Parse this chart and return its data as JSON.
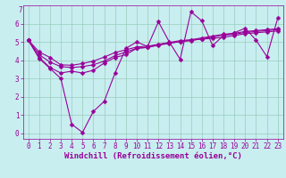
{
  "background_color": "#c8eef0",
  "grid_color": "#99ccbb",
  "line_color": "#990099",
  "marker": "D",
  "markersize": 2.5,
  "linewidth": 0.8,
  "xlabel": "Windchill (Refroidissement éolien,°C)",
  "xlabel_fontsize": 6.5,
  "tick_fontsize": 5.5,
  "xlim": [
    -0.5,
    23.5
  ],
  "ylim": [
    -0.3,
    7.0
  ],
  "yticks": [
    0,
    1,
    2,
    3,
    4,
    5,
    6
  ],
  "xticks": [
    0,
    1,
    2,
    3,
    4,
    5,
    6,
    7,
    8,
    9,
    10,
    11,
    12,
    13,
    14,
    15,
    16,
    17,
    18,
    19,
    20,
    21,
    22,
    23
  ],
  "series": [
    [
      5.1,
      4.1,
      3.55,
      3.0,
      0.5,
      0.05,
      1.2,
      1.75,
      3.3,
      4.65,
      5.0,
      4.75,
      6.1,
      5.0,
      4.05,
      6.65,
      6.15,
      4.8,
      5.35,
      5.5,
      5.75,
      5.1,
      4.2,
      6.3
    ],
    [
      5.1,
      4.15,
      3.6,
      3.3,
      3.4,
      3.3,
      3.45,
      3.85,
      4.15,
      4.3,
      4.65,
      4.7,
      4.85,
      4.95,
      5.0,
      5.1,
      5.15,
      5.2,
      5.25,
      5.35,
      5.45,
      5.5,
      5.55,
      5.6
    ],
    [
      5.1,
      4.3,
      3.9,
      3.65,
      3.6,
      3.65,
      3.75,
      3.95,
      4.25,
      4.45,
      4.65,
      4.7,
      4.82,
      4.92,
      5.02,
      5.07,
      5.17,
      5.27,
      5.37,
      5.42,
      5.52,
      5.57,
      5.62,
      5.67
    ],
    [
      5.1,
      4.45,
      4.15,
      3.75,
      3.72,
      3.82,
      3.95,
      4.17,
      4.42,
      4.57,
      4.72,
      4.77,
      4.87,
      4.97,
      5.07,
      5.12,
      5.22,
      5.32,
      5.42,
      5.47,
      5.57,
      5.62,
      5.67,
      5.72
    ]
  ]
}
